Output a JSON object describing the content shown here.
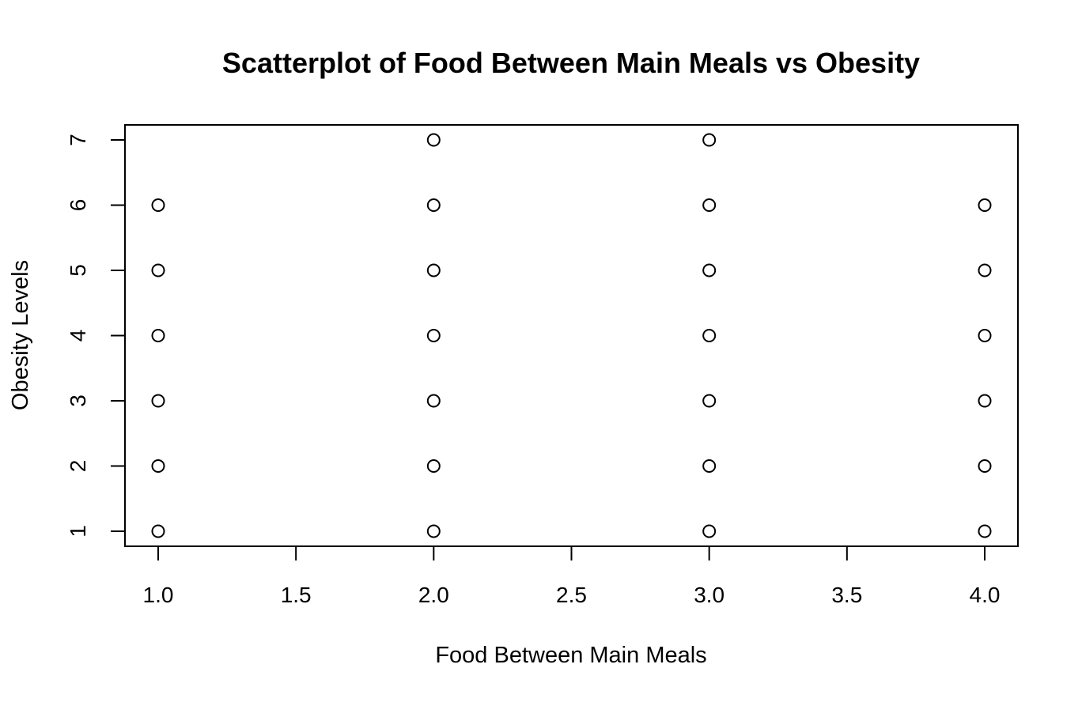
{
  "chart_data": {
    "type": "scatter",
    "title": "Scatterplot of Food Between Main Meals vs Obesity",
    "xlabel": "Food Between Main Meals",
    "ylabel": "Obesity Levels",
    "xlim": [
      1.0,
      4.0
    ],
    "ylim": [
      1,
      7
    ],
    "x_ticks": [
      "1.0",
      "1.5",
      "2.0",
      "2.5",
      "3.0",
      "3.5",
      "4.0"
    ],
    "y_ticks": [
      "1",
      "2",
      "3",
      "4",
      "5",
      "6",
      "7"
    ],
    "grid": false,
    "legend": "none",
    "marker": "open-circle",
    "marker_color": "#000000",
    "points": [
      {
        "x": 1,
        "y": 1
      },
      {
        "x": 1,
        "y": 2
      },
      {
        "x": 1,
        "y": 3
      },
      {
        "x": 1,
        "y": 4
      },
      {
        "x": 1,
        "y": 5
      },
      {
        "x": 1,
        "y": 6
      },
      {
        "x": 2,
        "y": 1
      },
      {
        "x": 2,
        "y": 2
      },
      {
        "x": 2,
        "y": 3
      },
      {
        "x": 2,
        "y": 4
      },
      {
        "x": 2,
        "y": 5
      },
      {
        "x": 2,
        "y": 6
      },
      {
        "x": 2,
        "y": 7
      },
      {
        "x": 3,
        "y": 1
      },
      {
        "x": 3,
        "y": 2
      },
      {
        "x": 3,
        "y": 3
      },
      {
        "x": 3,
        "y": 4
      },
      {
        "x": 3,
        "y": 5
      },
      {
        "x": 3,
        "y": 6
      },
      {
        "x": 3,
        "y": 7
      },
      {
        "x": 4,
        "y": 1
      },
      {
        "x": 4,
        "y": 2
      },
      {
        "x": 4,
        "y": 3
      },
      {
        "x": 4,
        "y": 4
      },
      {
        "x": 4,
        "y": 5
      },
      {
        "x": 4,
        "y": 6
      }
    ]
  }
}
